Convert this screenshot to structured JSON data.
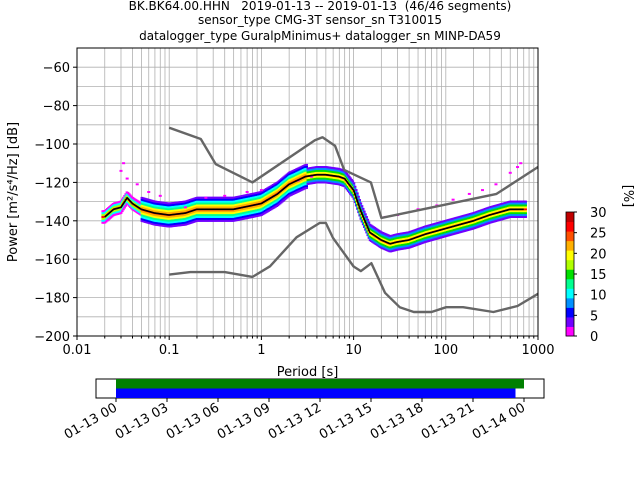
{
  "title": {
    "line1": "BK.BK64.00.HHN   2019-01-13 -- 2019-01-13  (46/46 segments)",
    "line2": "sensor_type CMG-3T sensor_sn T310015",
    "line3": "datalogger_type GuralpMinimus+ datalogger_sn MINP-DA59"
  },
  "colorbar": {
    "label": "[%]",
    "ticks": [
      "0",
      "5",
      "10",
      "15",
      "20",
      "25",
      "30"
    ],
    "colors": [
      "#ff00ff",
      "#7000ff",
      "#0000ff",
      "#0090ff",
      "#00ffff",
      "#00ff90",
      "#00e000",
      "#b0ff00",
      "#ffff00",
      "#ffb000",
      "#ff5000",
      "#ff0000",
      "#c00000"
    ]
  },
  "timeline": {
    "tick_labels": [
      "01-13 00",
      "01-13 03",
      "01-13 06",
      "01-13 09",
      "01-13 12",
      "01-13 15",
      "01-13 18",
      "01-13 21",
      "01-14 00"
    ],
    "bars": [
      {
        "color": "#008000",
        "start_hour": 0.0,
        "end_hour": 24.0
      },
      {
        "color": "#0000ff",
        "start_hour": 0.0,
        "end_hour": 23.5
      }
    ]
  },
  "chart_data": {
    "type": "heatmap",
    "xlabel": "Period [s]",
    "ylabel": "Power [m²/s⁴/Hz] [dB]",
    "xscale": "log",
    "xlim": [
      0.01,
      1000
    ],
    "ylim": [
      -200,
      -50
    ],
    "x_ticks": [
      "0.01",
      "0.1",
      "1",
      "10",
      "100",
      "1000"
    ],
    "y_ticks": [
      "−200",
      "−180",
      "−160",
      "−140",
      "−120",
      "−100",
      "−80",
      "−60"
    ],
    "grid": true,
    "series": [
      {
        "role": "mean",
        "color": "#000000",
        "x": [
          0.02,
          0.025,
          0.03,
          0.035,
          0.04,
          0.05,
          0.07,
          0.1,
          0.15,
          0.2,
          0.3,
          0.5,
          0.8,
          1.0,
          1.5,
          2.0,
          3.0,
          4.0,
          5.0,
          7.0,
          8.0,
          10.0,
          12.0,
          15.0,
          20.0,
          25.0,
          30.0,
          40.0,
          60.0,
          100.0,
          200.0,
          300.0,
          500.0,
          700.0
        ],
        "y": [
          -138,
          -134,
          -133,
          -128,
          -131,
          -134,
          -136,
          -137,
          -136,
          -134,
          -134,
          -134,
          -132,
          -131,
          -126,
          -121,
          -117,
          -116,
          -116,
          -117,
          -118,
          -124,
          -135,
          -146,
          -150,
          -152,
          -151,
          -150,
          -147,
          -144,
          -140,
          -137,
          -134,
          -134
        ]
      },
      {
        "role": "high-noise-model",
        "color": "#666666",
        "x": [
          0.1,
          0.22,
          0.32,
          0.8,
          3.8,
          4.6,
          6.3,
          7.9,
          15.4,
          20.0,
          354.8,
          1000.0
        ],
        "y": [
          -91.5,
          -97.4,
          -110.5,
          -120.0,
          -98.0,
          -96.5,
          -101.0,
          -113.5,
          -120.0,
          -138.5,
          -126.0,
          -112.0
        ]
      },
      {
        "role": "low-noise-model",
        "color": "#666666",
        "x": [
          0.1,
          0.17,
          0.4,
          0.8,
          1.24,
          2.4,
          4.3,
          5.0,
          6.0,
          10.0,
          12.0,
          15.6,
          21.9,
          31.6,
          45.0,
          70.0,
          101.0,
          154.0,
          328.0,
          600.0,
          1000.0
        ],
        "y": [
          -168.0,
          -166.7,
          -166.7,
          -169.2,
          -163.7,
          -148.6,
          -141.1,
          -141.1,
          -149.0,
          -163.8,
          -166.2,
          -162.1,
          -177.5,
          -185.0,
          -187.5,
          -187.5,
          -185.0,
          -185.0,
          -187.5,
          -184.4,
          -178.0
        ]
      }
    ]
  }
}
